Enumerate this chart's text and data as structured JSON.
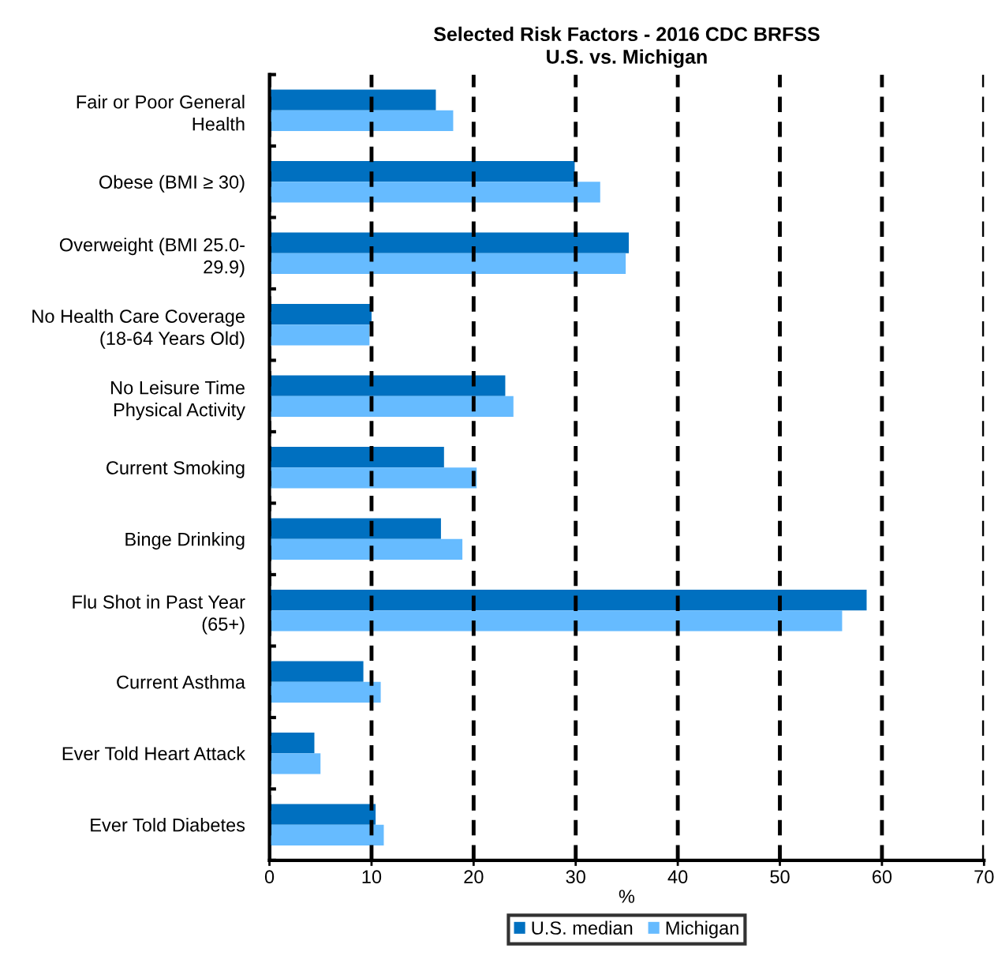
{
  "chart_data": {
    "type": "bar",
    "orientation": "horizontal",
    "title": "Selected Risk Factors - 2016 CDC BRFSS\nU.S. vs. Michigan",
    "xlabel": "%",
    "categories": [
      "Fair or Poor General\nHealth",
      "Obese (BMI ≥ 30)",
      "Overweight (BMI 25.0-\n29.9)",
      "No Health Care Coverage\n(18-64 Years Old)",
      "No Leisure Time\nPhysical Activity",
      "Current Smoking",
      "Binge Drinking",
      "Flu Shot in Past Year\n(65+)",
      "Current Asthma",
      "Ever Told Heart Attack",
      "Ever Told Diabetes"
    ],
    "series": [
      {
        "name": "U.S. median",
        "color": "#0070c0",
        "values": [
          16.3,
          29.9,
          35.2,
          10.0,
          23.1,
          17.1,
          16.8,
          58.5,
          9.2,
          4.4,
          10.4
        ]
      },
      {
        "name": "Michigan",
        "color": "#66bbff",
        "values": [
          18.0,
          32.4,
          34.9,
          9.8,
          23.9,
          20.3,
          18.9,
          56.1,
          10.9,
          5.0,
          11.2
        ]
      }
    ],
    "xlim": [
      0,
      70
    ],
    "xticks": [
      0,
      10,
      20,
      30,
      40,
      50,
      60,
      70
    ],
    "grid": "x",
    "line_style": "dashed",
    "legend": "bottom"
  }
}
